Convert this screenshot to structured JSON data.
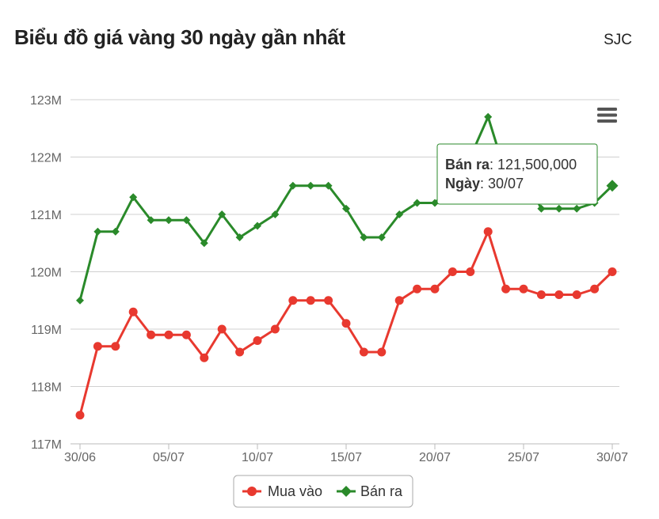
{
  "header": {
    "title": "Biểu đồ giá vàng 30 ngày gần nhất",
    "brand": "SJC"
  },
  "colors": {
    "buy": "#e8392f",
    "sell": "#2a8a2a",
    "grid": "#d0d0d0",
    "axis_text": "#666666"
  },
  "tooltip": {
    "series_label": "Bán ra",
    "series_value": "121,500,000",
    "date_label": "Ngày",
    "date_value": "30/07"
  },
  "chart_data": {
    "type": "line",
    "title": "Biểu đồ giá vàng 30 ngày gần nhất",
    "x_tick_labels": [
      "30/06",
      "05/07",
      "10/07",
      "15/07",
      "20/07",
      "25/07",
      "30/07"
    ],
    "y_tick_labels": [
      "117M",
      "118M",
      "119M",
      "120M",
      "121M",
      "122M",
      "123M"
    ],
    "ylim": [
      117,
      123
    ],
    "y_unit": "M",
    "grid": true,
    "legend_position": "bottom-center",
    "series": [
      {
        "name": "Mua vào",
        "color": "#e8392f",
        "marker": "circle",
        "values": [
          117.5,
          118.7,
          118.7,
          119.3,
          118.9,
          118.9,
          118.9,
          118.5,
          119.0,
          118.6,
          118.8,
          119.0,
          119.5,
          119.5,
          119.5,
          119.1,
          118.6,
          118.6,
          119.5,
          119.7,
          119.7,
          120.0,
          120.0,
          120.7,
          119.7,
          119.7,
          119.6,
          119.6,
          119.6,
          119.7,
          120.0
        ]
      },
      {
        "name": "Bán ra",
        "color": "#2a8a2a",
        "marker": "diamond",
        "values": [
          119.5,
          120.7,
          120.7,
          121.3,
          120.9,
          120.9,
          120.9,
          120.5,
          121.0,
          120.6,
          120.8,
          121.0,
          121.5,
          121.5,
          121.5,
          121.1,
          120.6,
          120.6,
          121.0,
          121.2,
          121.2,
          121.5,
          122.0,
          122.7,
          121.7,
          121.7,
          121.1,
          121.1,
          121.1,
          121.2,
          121.5
        ]
      }
    ]
  }
}
